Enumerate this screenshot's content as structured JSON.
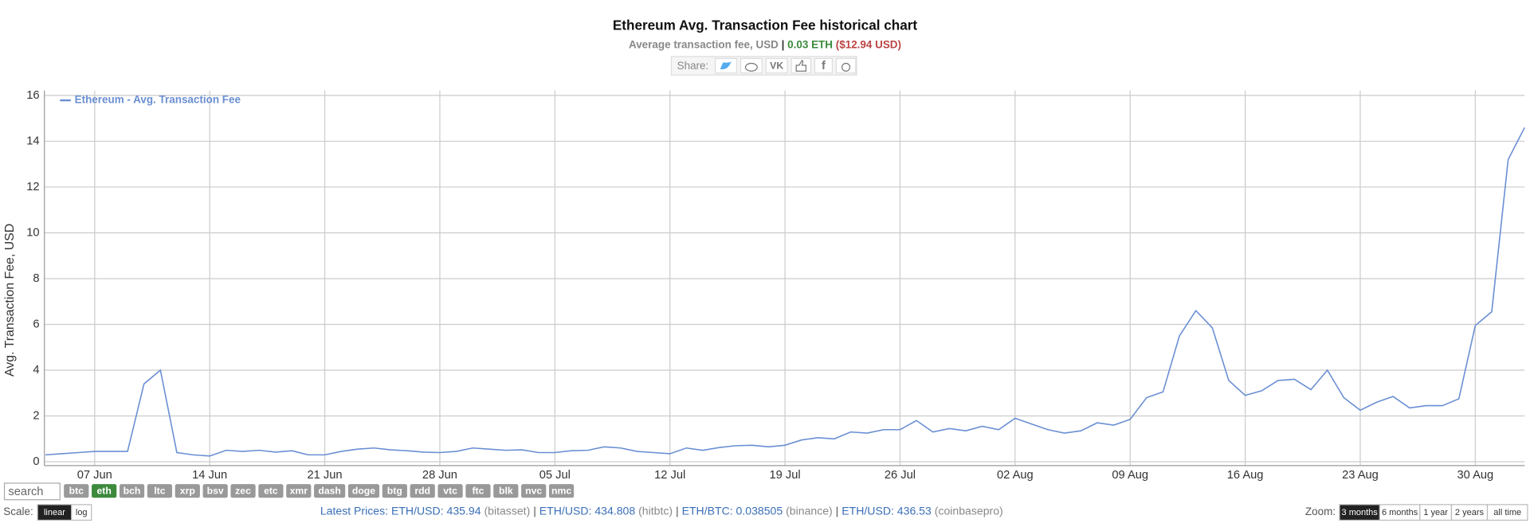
{
  "chart_data": {
    "type": "line",
    "title": "Ethereum Avg. Transaction Fee historical chart",
    "subtitle": {
      "label": "Average transaction fee, USD",
      "separator": "|",
      "eth": "0.03 ETH",
      "usd": "($12.94 USD)"
    },
    "share": "Share:",
    "ylabel": "Avg. Transaction Fee, USD",
    "ylim": [
      0,
      16
    ],
    "yticks": [
      0,
      2,
      4,
      6,
      8,
      10,
      12,
      14,
      16
    ],
    "grid": true,
    "legend": "upper left",
    "categories": [
      null,
      null,
      null,
      "07 Jun",
      null,
      null,
      null,
      null,
      null,
      null,
      "14 Jun",
      null,
      null,
      null,
      null,
      null,
      null,
      "21 Jun",
      null,
      null,
      null,
      null,
      null,
      null,
      "28 Jun",
      null,
      null,
      null,
      null,
      null,
      null,
      "05 Jul",
      null,
      null,
      null,
      null,
      null,
      null,
      "12 Jul",
      null,
      null,
      null,
      null,
      null,
      null,
      "19 Jul",
      null,
      null,
      null,
      null,
      null,
      null,
      "26 Jul",
      null,
      null,
      null,
      null,
      null,
      null,
      "02 Aug",
      null,
      null,
      null,
      null,
      null,
      null,
      "09 Aug",
      null,
      null,
      null,
      null,
      null,
      null,
      "16 Aug",
      null,
      null,
      null,
      null,
      null,
      null,
      "23 Aug",
      null,
      null,
      null,
      null,
      null,
      null,
      "30 Aug",
      null,
      null,
      null
    ],
    "series": [
      {
        "name": "Ethereum - Avg. Transaction Fee",
        "color": "#6a8fd3",
        "values": [
          0.3,
          0.35,
          0.4,
          0.45,
          0.45,
          0.45,
          3.4,
          4.0,
          0.4,
          0.3,
          0.25,
          0.5,
          0.45,
          0.5,
          0.42,
          0.48,
          0.3,
          0.3,
          0.45,
          0.55,
          0.6,
          0.52,
          0.48,
          0.42,
          0.4,
          0.45,
          0.6,
          0.55,
          0.5,
          0.52,
          0.4,
          0.4,
          0.48,
          0.5,
          0.65,
          0.6,
          0.45,
          0.4,
          0.35,
          0.6,
          0.5,
          0.62,
          0.7,
          0.72,
          0.65,
          0.72,
          0.95,
          1.05,
          1.0,
          1.3,
          1.25,
          1.4,
          1.4,
          1.8,
          1.3,
          1.45,
          1.35,
          1.55,
          1.4,
          1.9,
          1.65,
          1.4,
          1.25,
          1.35,
          1.7,
          1.6,
          1.85,
          2.8,
          3.05,
          5.5,
          6.6,
          5.85,
          3.55,
          2.9,
          3.1,
          3.55,
          3.6,
          3.15,
          4.0,
          2.8,
          2.25,
          2.6,
          2.85,
          2.35,
          2.45,
          2.45,
          2.75,
          5.95,
          6.55,
          13.2,
          14.6
        ]
      }
    ]
  },
  "controls": {
    "search": "search",
    "coins": [
      "btc",
      "eth",
      "bch",
      "ltc",
      "xrp",
      "bsv",
      "zec",
      "etc",
      "xmr",
      "dash",
      "doge",
      "btg",
      "rdd",
      "vtc",
      "ftc",
      "blk",
      "nvc",
      "nmc"
    ],
    "scale_label": "Scale:",
    "scales": [
      "linear",
      "log"
    ],
    "zoom_label": "Zoom:",
    "zooms": [
      "3 months",
      "6 months",
      "1 year",
      "2 years",
      "all time"
    ],
    "prices": {
      "label": "Latest Prices:",
      "separator": "|",
      "items": [
        {
          "pair": "ETH/USD: 435.94",
          "source": "(bitasset)"
        },
        {
          "pair": "ETH/USD: 434.808",
          "source": "(hitbtc)"
        },
        {
          "pair": "ETH/BTC: 0.038505",
          "source": "(binance)"
        },
        {
          "pair": "ETH/USD: 436.53",
          "source": "(coinbasepro)"
        }
      ]
    }
  }
}
